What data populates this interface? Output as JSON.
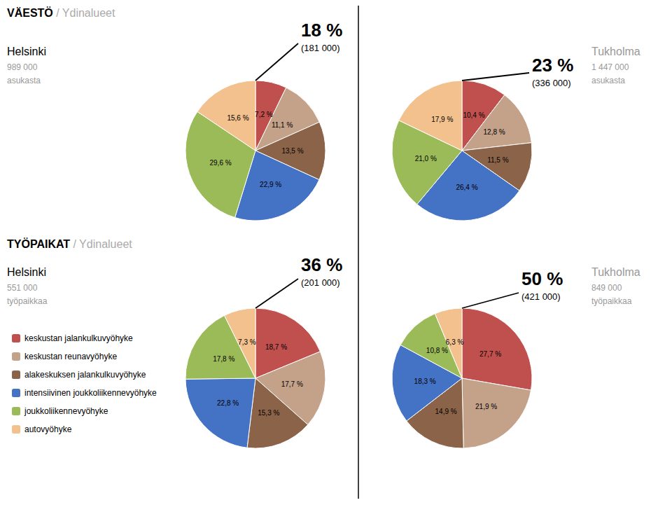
{
  "chart_data": [
    {
      "type": "pie",
      "subtitle": "VÄESTÖ / Ydinalueet",
      "title": "Helsinki",
      "annotations": [
        "989 000",
        "asukasta",
        "18 %",
        "(181 000)"
      ],
      "categories": [
        "keskustan jalankulkuvyöhyke",
        "keskustan reunavyöhyke",
        "alakeskuksen jalankulkuvyöhyke",
        "intensiivinen joukkoliikennevyöhyke",
        "joukkoliikennevyöhyke",
        "autovyöhyke"
      ],
      "values": [
        7.2,
        11.1,
        13.5,
        22.9,
        29.6,
        15.6
      ],
      "value_labels": [
        "7,2 %",
        "11,1 %",
        "13,5 %",
        "22,9 %",
        "29,6 %",
        "15,6 %"
      ],
      "colors": [
        "#C0504D",
        "#C4A28A",
        "#8B6348",
        "#4472C4",
        "#9BBB59",
        "#F2C18D"
      ],
      "data_labels": true
    },
    {
      "type": "pie",
      "title": "Tukholma",
      "annotations": [
        "1 447 000",
        "asukasta",
        "23 %",
        "(336 000)"
      ],
      "categories": [
        "keskustan jalankulkuvyöhyke",
        "keskustan reunavyöhyke",
        "alakeskuksen jalankulkuvyöhyke",
        "intensiivinen joukkoliikennevyöhyke",
        "joukkoliikennevyöhyke",
        "autovyöhyke"
      ],
      "values": [
        10.4,
        12.8,
        11.5,
        26.4,
        21.0,
        17.9
      ],
      "value_labels": [
        "10,4 %",
        "12,8 %",
        "11,5 %",
        "26,4 %",
        "21,0 %",
        "17,9 %"
      ],
      "colors": [
        "#C0504D",
        "#C4A28A",
        "#8B6348",
        "#4472C4",
        "#9BBB59",
        "#F2C18D"
      ],
      "data_labels": true
    },
    {
      "type": "pie",
      "subtitle": "TYÖPAIKAT / Ydinalueet",
      "title": "Helsinki",
      "annotations": [
        "551 000",
        "työpaikkaa",
        "36 %",
        "(201 000)"
      ],
      "categories": [
        "keskustan jalankulkuvyöhyke",
        "keskustan reunavyöhyke",
        "alakeskuksen jalankulkuvyöhyke",
        "intensiivinen joukkoliikennevyöhyke",
        "joukkoliikennevyöhyke",
        "autovyöhyke"
      ],
      "values": [
        18.7,
        17.7,
        15.3,
        22.8,
        17.8,
        7.3
      ],
      "value_labels": [
        "18,7 %",
        "17,7 %",
        "15,3 %",
        "22,8 %",
        "17,8 %",
        "7,3 %"
      ],
      "colors": [
        "#C0504D",
        "#C4A28A",
        "#8B6348",
        "#4472C4",
        "#9BBB59",
        "#F2C18D"
      ],
      "data_labels": true,
      "legend": "lower left"
    },
    {
      "type": "pie",
      "title": "Tukholma",
      "annotations": [
        "849 000",
        "työpaikkaa",
        "50 %",
        "(421 000)"
      ],
      "categories": [
        "keskustan jalankulkuvyöhyke",
        "keskustan reunavyöhyke",
        "alakeskuksen jalankulkuvyöhyke",
        "intensiivinen joukkoliikennevyöhyke",
        "joukkoliikennevyöhyke",
        "autovyöhyke"
      ],
      "values": [
        27.7,
        21.9,
        14.9,
        18.3,
        10.8,
        6.3
      ],
      "value_labels": [
        "27,7 %",
        "21,9 %",
        "14,9 %",
        "18,3 %",
        "10,8 %",
        "6,3 %"
      ],
      "colors": [
        "#C0504D",
        "#C4A28A",
        "#8B6348",
        "#4472C4",
        "#9BBB59",
        "#F2C18D"
      ],
      "data_labels": true
    }
  ]
}
